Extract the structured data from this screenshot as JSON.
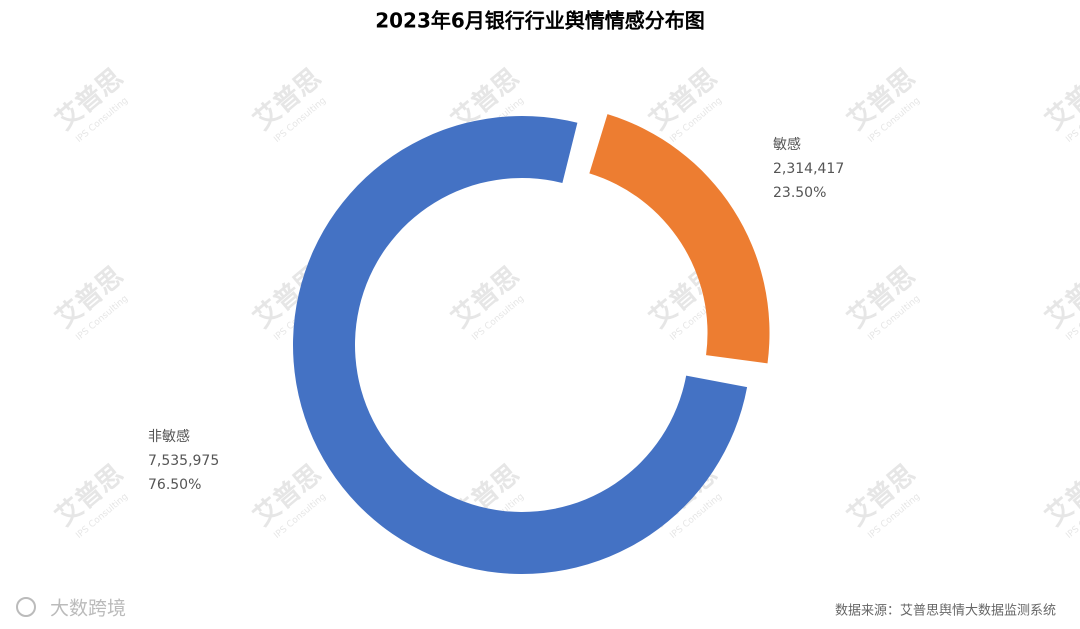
{
  "chart_data": {
    "type": "donut",
    "title": "2023年6月银行行业舆情情感分布图",
    "categories": [
      "敏感",
      "非敏感"
    ],
    "series": [
      {
        "name": "敏感",
        "color": "#ed7d31"
      },
      {
        "name": "非敏感",
        "color": "#4472c4"
      }
    ],
    "values": [
      2314417,
      7535975
    ],
    "value_labels": [
      "2,314,417",
      "7,535,975"
    ],
    "percents": [
      23.5,
      76.5
    ],
    "percent_labels": [
      "23.50%",
      "76.50%"
    ],
    "source": "数据来源：艾普思舆情大数据监测系统",
    "watermark": "艾普思",
    "watermark_sub": "IPS Consulting",
    "corner_mark": "大数跨境"
  }
}
